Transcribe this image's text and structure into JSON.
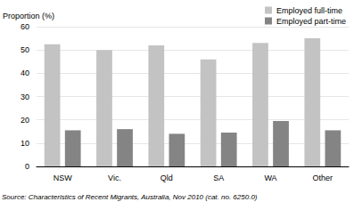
{
  "chart_data": {
    "type": "bar",
    "ylabel": "Proportion (%)",
    "categories": [
      "NSW",
      "Vic.",
      "Qld",
      "SA",
      "WA",
      "Other"
    ],
    "series": [
      {
        "name": "Employed full-time",
        "color": "#c3c3c3",
        "values": [
          52.5,
          50,
          52,
          46,
          53,
          55
        ]
      },
      {
        "name": "Employed part-time",
        "color": "#848484",
        "values": [
          15.5,
          16,
          14,
          14.5,
          19.5,
          15.5
        ]
      }
    ],
    "ylim": [
      0,
      60
    ],
    "yticks": [
      0,
      10,
      20,
      30,
      40,
      50,
      60
    ],
    "grid": true,
    "legend": "top-right",
    "annotations": [
      "Source: Characteristics of Recent Migrants, Australia, Nov 2010 (cat. no. 6250.0)"
    ]
  }
}
